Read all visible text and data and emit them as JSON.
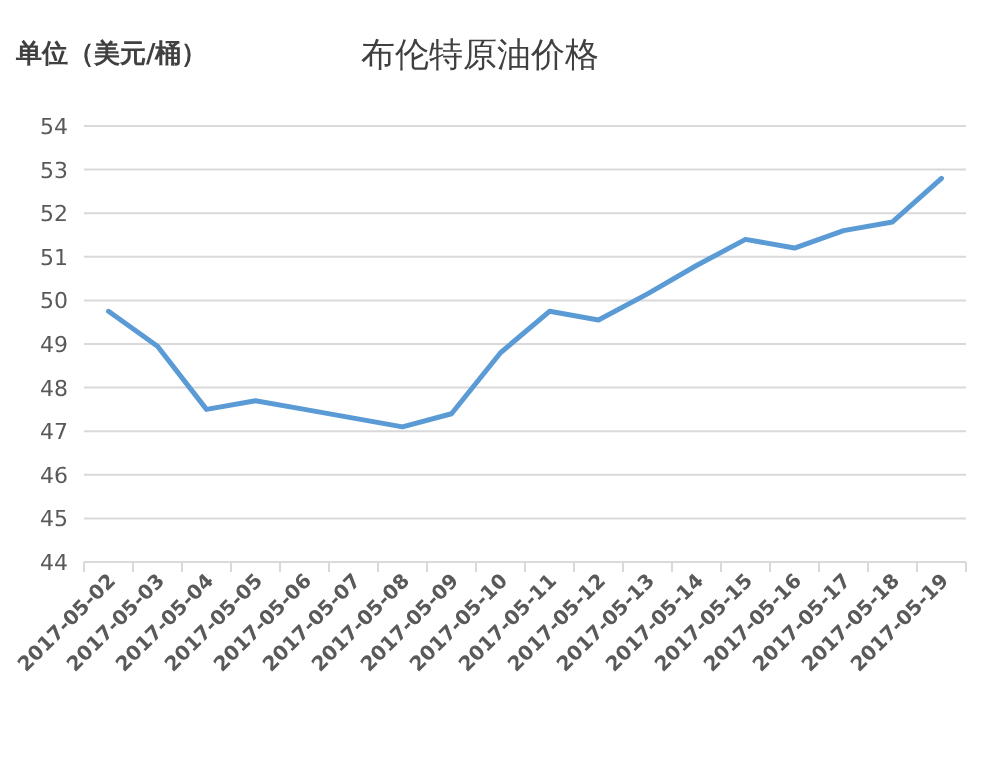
{
  "chart_data": {
    "type": "line",
    "title": "布伦特原油价格",
    "ylabel": "单位（美元/桶）",
    "categories": [
      "2017-05-02",
      "2017-05-03",
      "2017-05-04",
      "2017-05-05",
      "2017-05-06",
      "2017-05-07",
      "2017-05-08",
      "2017-05-09",
      "2017-05-10",
      "2017-05-11",
      "2017-05-12",
      "2017-05-13",
      "2017-05-14",
      "2017-05-15",
      "2017-05-16",
      "2017-05-17",
      "2017-05-18",
      "2017-05-19"
    ],
    "series": [
      {
        "color": "#5b9bd5",
        "values": [
          49.75,
          48.95,
          47.5,
          47.7,
          47.5,
          47.3,
          47.1,
          47.4,
          48.8,
          49.75,
          49.55,
          50.15,
          50.8,
          51.4,
          51.2,
          51.6,
          51.8,
          52.8
        ]
      }
    ],
    "ylim": [
      44,
      54
    ],
    "yticks": [
      44,
      45,
      46,
      47,
      48,
      49,
      50,
      51,
      52,
      53,
      54
    ],
    "grid": "y",
    "marker": "none",
    "line_style": "solid"
  }
}
